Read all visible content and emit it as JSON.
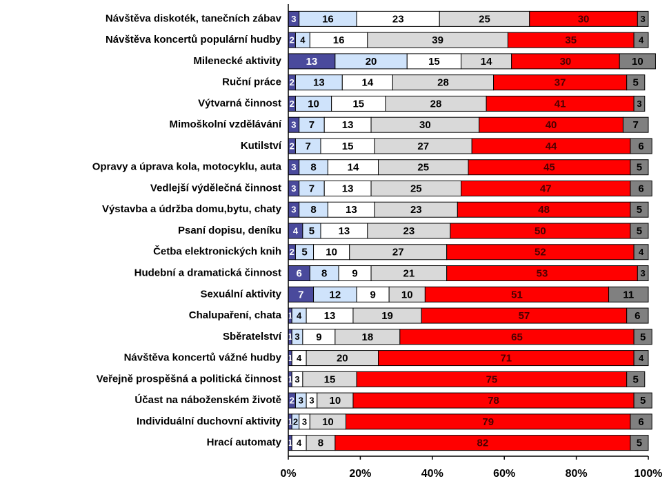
{
  "chart_data": {
    "type": "stacked-bar-horizontal-percent",
    "categories": [
      "Návštěva diskoték, tanečních zábav",
      "Návštěva koncertů populární hudby",
      "Milenecké aktivity",
      "Ruční práce",
      "Výtvarná činnost",
      "Mimoškolní vzdělávání",
      "Kutilství",
      "Opravy a úprava kola, motocyklu, auta",
      "Vedlejší výdělečná činnost",
      "Výstavba a údržba domu,bytu, chaty",
      "Psaní dopisu, deníku",
      "Četba elektronických knih",
      "Hudební a dramatická činnost",
      "Sexuální aktivity",
      "Chalupaření, chata",
      "Sběratelství",
      "Návštěva koncertů vážné hudby",
      "Veřejně prospěšná a politická činnost",
      "Účast na náboženském životě",
      "Individuální duchovní aktivity",
      "Hrací automaty"
    ],
    "series": [
      {
        "color": "#4a4a9c",
        "label_color": "#ffffff",
        "values": [
          3,
          2,
          13,
          2,
          2,
          3,
          2,
          3,
          3,
          3,
          4,
          2,
          6,
          7,
          1,
          1,
          1,
          1,
          2,
          1,
          1
        ]
      },
      {
        "color": "#cfe3fb",
        "label_color": "#000000",
        "values": [
          16,
          4,
          20,
          13,
          10,
          7,
          7,
          8,
          7,
          8,
          5,
          5,
          8,
          12,
          4,
          3,
          0,
          0,
          3,
          2,
          0
        ]
      },
      {
        "color": "#ffffff",
        "label_color": "#000000",
        "values": [
          23,
          16,
          15,
          14,
          15,
          13,
          15,
          14,
          13,
          13,
          13,
          10,
          9,
          9,
          13,
          9,
          4,
          3,
          3,
          3,
          4
        ]
      },
      {
        "color": "#d9d9d9",
        "label_color": "#000000",
        "values": [
          25,
          39,
          14,
          28,
          28,
          30,
          27,
          25,
          25,
          23,
          23,
          27,
          21,
          10,
          19,
          18,
          20,
          15,
          10,
          10,
          8
        ]
      },
      {
        "color": "#ff0000",
        "label_color": "#4a0000",
        "values": [
          30,
          35,
          30,
          37,
          41,
          40,
          44,
          45,
          47,
          48,
          50,
          52,
          53,
          51,
          57,
          65,
          71,
          75,
          78,
          79,
          82
        ]
      },
      {
        "color": "#808080",
        "label_color": "#000000",
        "values": [
          3,
          4,
          10,
          5,
          3,
          7,
          6,
          5,
          6,
          5,
          5,
          4,
          3,
          11,
          6,
          5,
          4,
          5,
          5,
          6,
          5
        ]
      }
    ],
    "xlim": [
      0,
      100
    ],
    "xticks": [
      {
        "value": 0,
        "label": "0%"
      },
      {
        "value": 20,
        "label": "20%"
      },
      {
        "value": 40,
        "label": "40%"
      },
      {
        "value": 60,
        "label": "60%"
      },
      {
        "value": 80,
        "label": "80%"
      },
      {
        "value": 100,
        "label": "100%"
      }
    ]
  }
}
